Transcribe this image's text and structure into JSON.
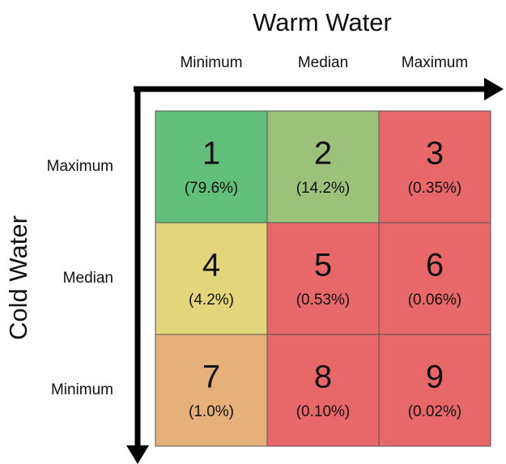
{
  "x_axis": {
    "title": "Warm Water",
    "labels": [
      "Minimum",
      "Median",
      "Maximum"
    ]
  },
  "y_axis": {
    "title": "Cold Water",
    "labels": [
      "Maximum",
      "Median",
      "Minimum"
    ]
  },
  "cells": [
    [
      {
        "number": "1",
        "share": "(79.6%)"
      },
      {
        "number": "2",
        "share": "(14.2%)"
      },
      {
        "number": "3",
        "share": "(0.35%)"
      }
    ],
    [
      {
        "number": "4",
        "share": "(4.2%)"
      },
      {
        "number": "5",
        "share": "(0.53%)"
      },
      {
        "number": "6",
        "share": "(0.06%)"
      }
    ],
    [
      {
        "number": "7",
        "share": "(1.0%)"
      },
      {
        "number": "8",
        "share": "(0.10%)"
      },
      {
        "number": "9",
        "share": "(0.02%)"
      }
    ]
  ]
}
